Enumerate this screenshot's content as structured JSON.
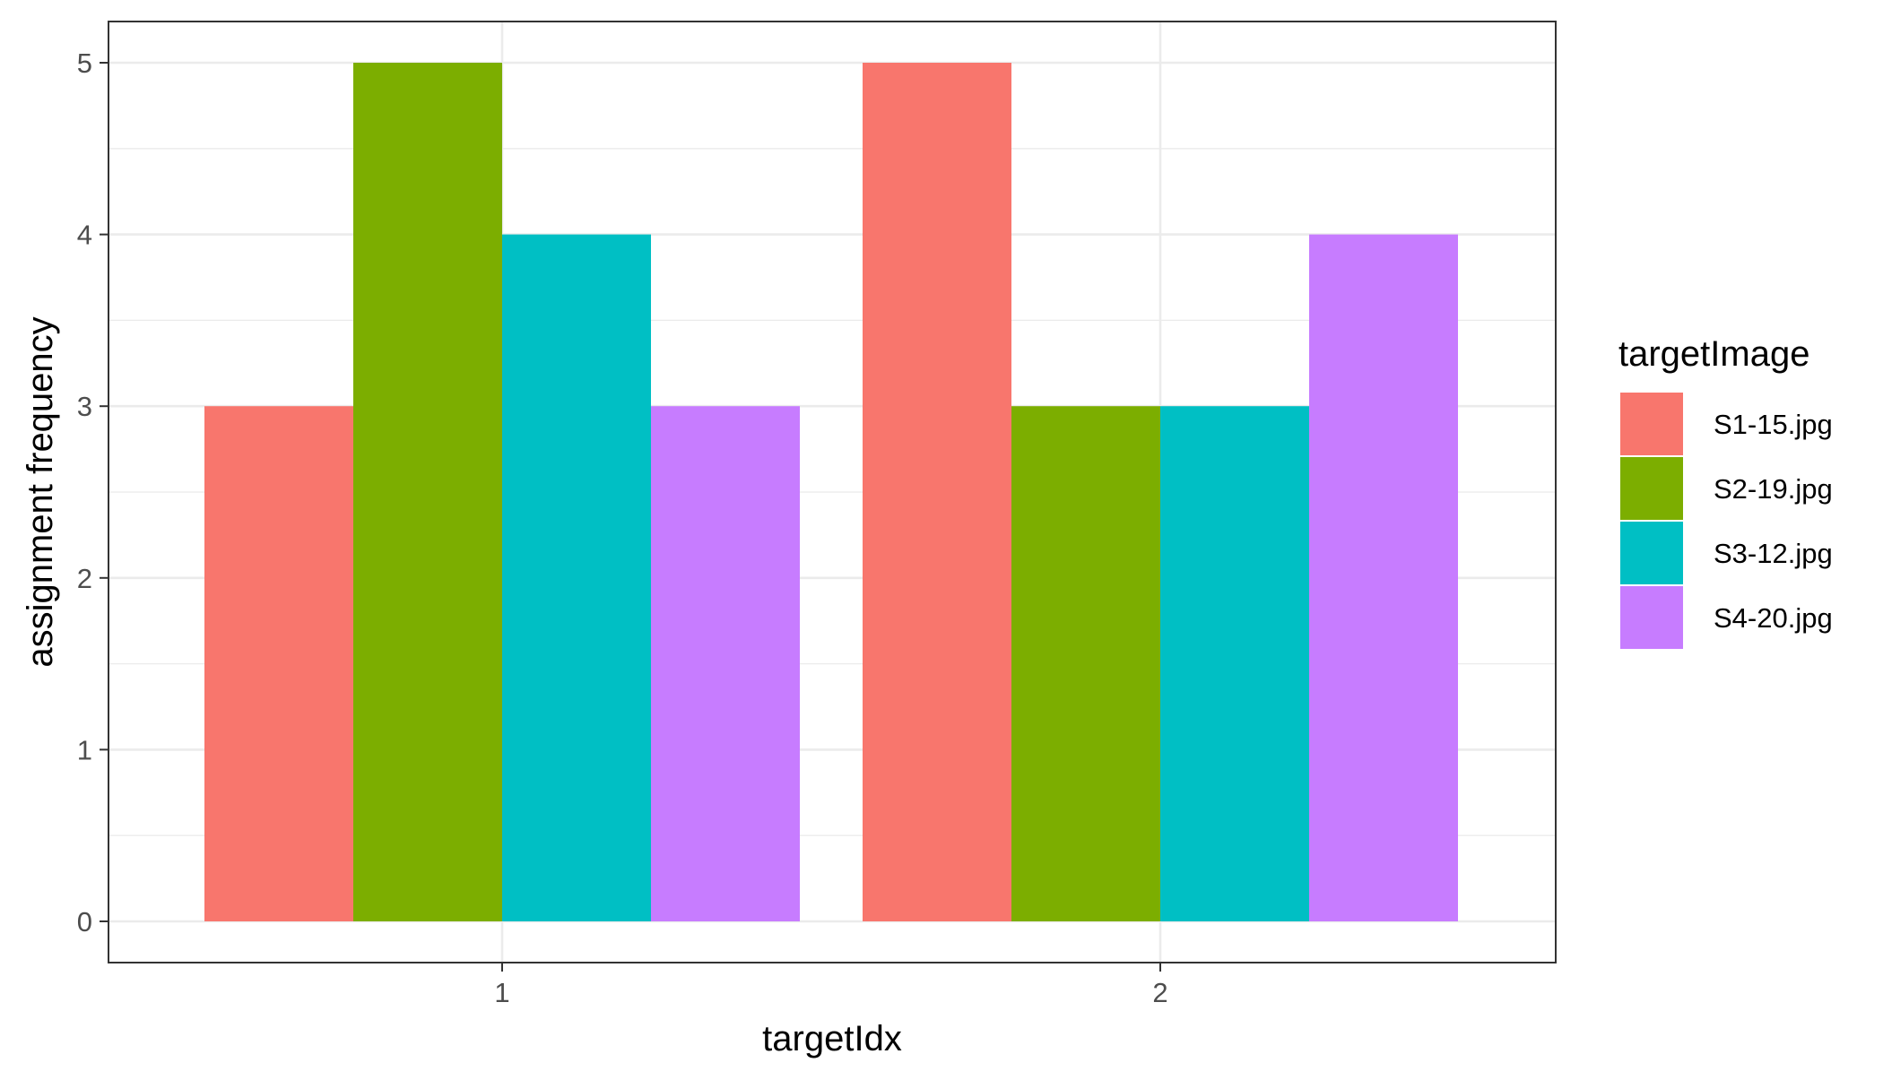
{
  "chart_data": {
    "type": "bar",
    "xlabel": "targetIdx",
    "ylabel": "assignment frequency",
    "categories": [
      "1",
      "2"
    ],
    "ylim": [
      0,
      5.23
    ],
    "yticks": [
      0,
      1,
      2,
      3,
      4,
      5
    ],
    "grid": true,
    "legend": {
      "title": "targetImage",
      "placement": "right"
    },
    "series": [
      {
        "name": "S1-15.jpg",
        "color": "#F8766D",
        "values": [
          3,
          5
        ]
      },
      {
        "name": "S2-19.jpg",
        "color": "#7CAE00",
        "values": [
          5,
          3
        ]
      },
      {
        "name": "S3-12.jpg",
        "color": "#00BFC4",
        "values": [
          4,
          3
        ]
      },
      {
        "name": "S4-20.jpg",
        "color": "#C77CFF",
        "values": [
          3,
          4
        ]
      }
    ]
  }
}
